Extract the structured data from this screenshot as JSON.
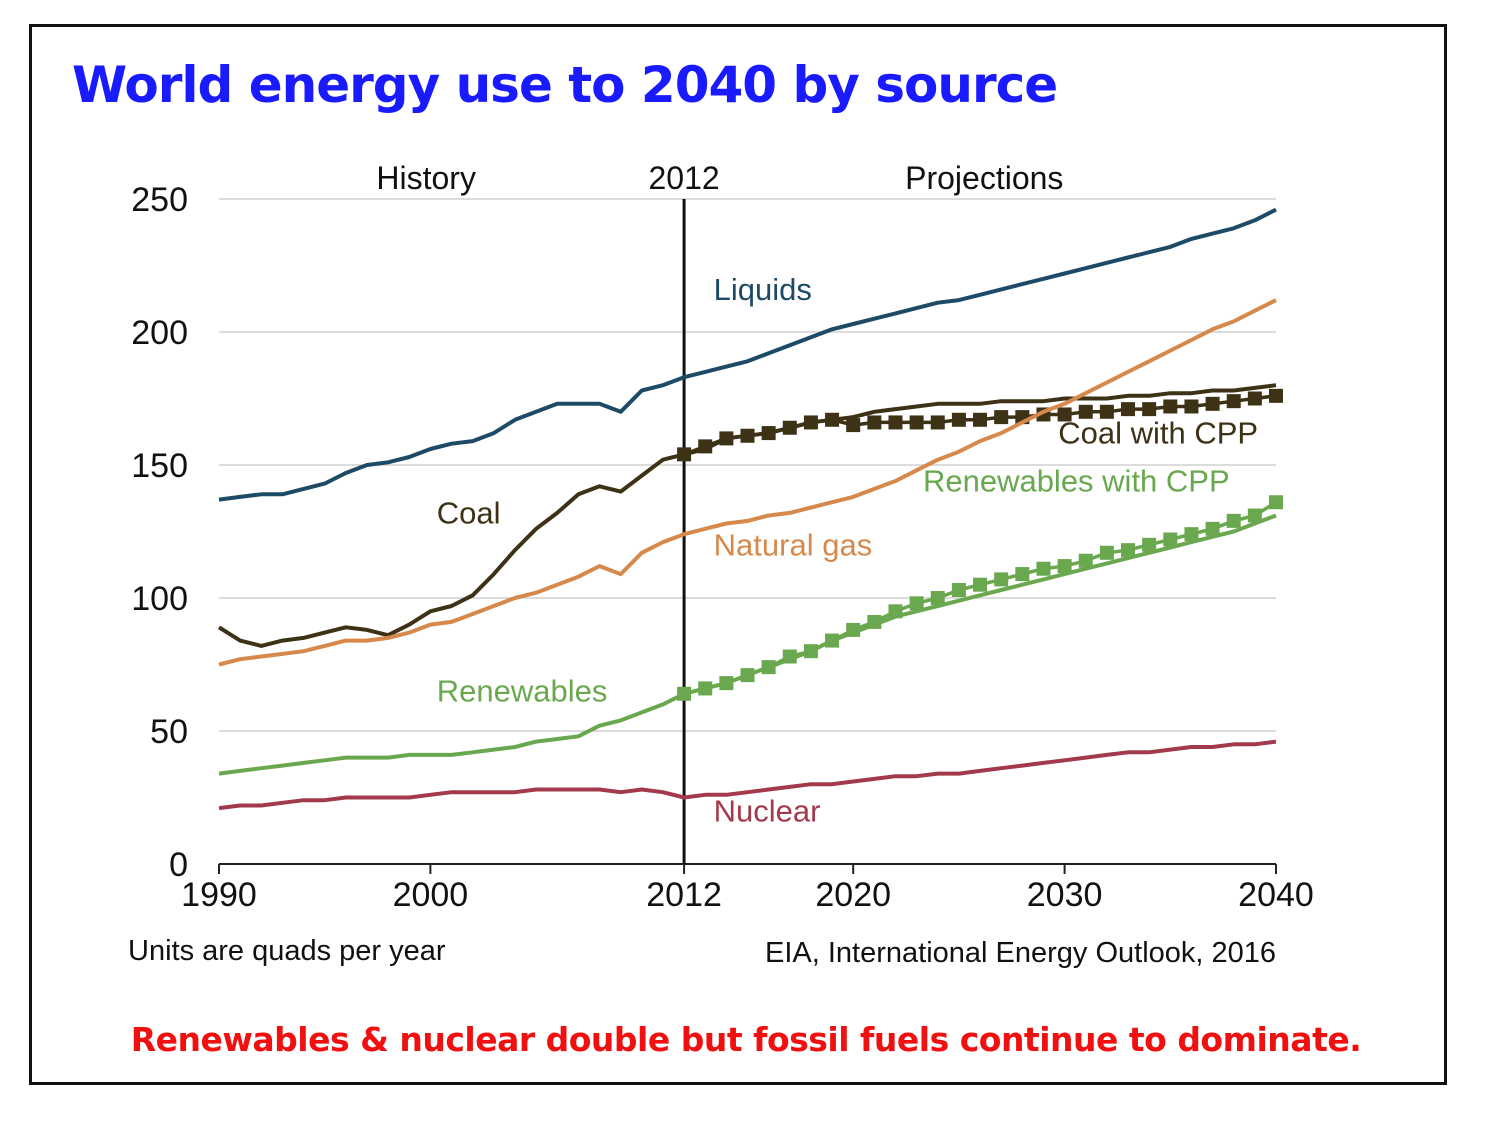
{
  "title": "World energy use to 2040 by source",
  "units_note": "Units are quads per year",
  "source_note": "EIA, International Energy Outlook, 2016",
  "caption": "Renewables & nuclear double but fossil fuels continue to dominate.",
  "colors": {
    "title": "#1a1aff",
    "caption": "#f01010",
    "liquids": "#1d4a66",
    "coal": "#3d3116",
    "natural_gas": "#d6894b",
    "renewables": "#6aa84f",
    "nuclear": "#a33a4c"
  },
  "chart_data": {
    "type": "line",
    "xlim": [
      1990,
      2040
    ],
    "ylim": [
      0,
      250
    ],
    "x_ticks": [
      "1990",
      "2000",
      "2012",
      "2020",
      "2030",
      "2040"
    ],
    "y_ticks": [
      "0",
      "50",
      "100",
      "150",
      "200",
      "250"
    ],
    "grid": true,
    "period_labels": {
      "history": "History",
      "divider": "2012",
      "projections": "Projections"
    },
    "divider_year": 2012,
    "series": [
      {
        "name": "Liquids",
        "color": "#1d4a66",
        "marker": "none",
        "x": [
          1990,
          1991,
          1992,
          1993,
          1994,
          1995,
          1996,
          1997,
          1998,
          1999,
          2000,
          2001,
          2002,
          2003,
          2004,
          2005,
          2006,
          2007,
          2008,
          2009,
          2010,
          2011,
          2012,
          2013,
          2014,
          2015,
          2016,
          2017,
          2018,
          2019,
          2020,
          2021,
          2022,
          2023,
          2024,
          2025,
          2026,
          2027,
          2028,
          2029,
          2030,
          2031,
          2032,
          2033,
          2034,
          2035,
          2036,
          2037,
          2038,
          2039,
          2040
        ],
        "y": [
          137,
          138,
          139,
          139,
          141,
          143,
          147,
          150,
          151,
          153,
          156,
          158,
          159,
          162,
          167,
          170,
          173,
          173,
          173,
          170,
          178,
          180,
          183,
          185,
          187,
          189,
          192,
          195,
          198,
          201,
          203,
          205,
          207,
          209,
          211,
          212,
          214,
          216,
          218,
          220,
          222,
          224,
          226,
          228,
          230,
          232,
          235,
          237,
          239,
          242,
          246
        ]
      },
      {
        "name": "Coal",
        "color": "#3d3116",
        "marker": "none",
        "x": [
          1990,
          1991,
          1992,
          1993,
          1994,
          1995,
          1996,
          1997,
          1998,
          1999,
          2000,
          2001,
          2002,
          2003,
          2004,
          2005,
          2006,
          2007,
          2008,
          2009,
          2010,
          2011,
          2012,
          2013,
          2014,
          2015,
          2016,
          2017,
          2018,
          2019,
          2020,
          2021,
          2022,
          2023,
          2024,
          2025,
          2026,
          2027,
          2028,
          2029,
          2030,
          2031,
          2032,
          2033,
          2034,
          2035,
          2036,
          2037,
          2038,
          2039,
          2040
        ],
        "y": [
          89,
          84,
          82,
          84,
          85,
          87,
          89,
          88,
          86,
          90,
          95,
          97,
          101,
          109,
          118,
          126,
          132,
          139,
          142,
          140,
          146,
          152,
          154,
          156,
          160,
          161,
          162,
          164,
          166,
          167,
          168,
          170,
          171,
          172,
          173,
          173,
          173,
          174,
          174,
          174,
          175,
          175,
          175,
          176,
          176,
          177,
          177,
          178,
          178,
          179,
          180
        ]
      },
      {
        "name": "Coal with CPP",
        "color": "#3d3116",
        "marker": "square",
        "x": [
          2012,
          2013,
          2014,
          2015,
          2016,
          2017,
          2018,
          2019,
          2020,
          2021,
          2022,
          2023,
          2024,
          2025,
          2026,
          2027,
          2028,
          2029,
          2030,
          2031,
          2032,
          2033,
          2034,
          2035,
          2036,
          2037,
          2038,
          2039,
          2040
        ],
        "y": [
          154,
          157,
          160,
          161,
          162,
          164,
          166,
          167,
          165,
          166,
          166,
          166,
          166,
          167,
          167,
          168,
          168,
          169,
          169,
          170,
          170,
          171,
          171,
          172,
          172,
          173,
          174,
          175,
          176
        ]
      },
      {
        "name": "Natural gas",
        "color": "#d6894b",
        "marker": "none",
        "x": [
          1990,
          1991,
          1992,
          1993,
          1994,
          1995,
          1996,
          1997,
          1998,
          1999,
          2000,
          2001,
          2002,
          2003,
          2004,
          2005,
          2006,
          2007,
          2008,
          2009,
          2010,
          2011,
          2012,
          2013,
          2014,
          2015,
          2016,
          2017,
          2018,
          2019,
          2020,
          2021,
          2022,
          2023,
          2024,
          2025,
          2026,
          2027,
          2028,
          2029,
          2030,
          2031,
          2032,
          2033,
          2034,
          2035,
          2036,
          2037,
          2038,
          2039,
          2040
        ],
        "y": [
          75,
          77,
          78,
          79,
          80,
          82,
          84,
          84,
          85,
          87,
          90,
          91,
          94,
          97,
          100,
          102,
          105,
          108,
          112,
          109,
          117,
          121,
          124,
          126,
          128,
          129,
          131,
          132,
          134,
          136,
          138,
          141,
          144,
          148,
          152,
          155,
          159,
          162,
          166,
          170,
          173,
          177,
          181,
          185,
          189,
          193,
          197,
          201,
          204,
          208,
          212
        ]
      },
      {
        "name": "Renewables",
        "color": "#6aa84f",
        "marker": "none",
        "x": [
          1990,
          1991,
          1992,
          1993,
          1994,
          1995,
          1996,
          1997,
          1998,
          1999,
          2000,
          2001,
          2002,
          2003,
          2004,
          2005,
          2006,
          2007,
          2008,
          2009,
          2010,
          2011,
          2012,
          2013,
          2014,
          2015,
          2016,
          2017,
          2018,
          2019,
          2020,
          2021,
          2022,
          2023,
          2024,
          2025,
          2026,
          2027,
          2028,
          2029,
          2030,
          2031,
          2032,
          2033,
          2034,
          2035,
          2036,
          2037,
          2038,
          2039,
          2040
        ],
        "y": [
          34,
          35,
          36,
          37,
          38,
          39,
          40,
          40,
          40,
          41,
          41,
          41,
          42,
          43,
          44,
          46,
          47,
          48,
          52,
          54,
          57,
          60,
          64,
          66,
          68,
          71,
          74,
          77,
          80,
          84,
          87,
          90,
          93,
          95,
          97,
          99,
          101,
          103,
          105,
          107,
          109,
          111,
          113,
          115,
          117,
          119,
          121,
          123,
          125,
          128,
          131
        ]
      },
      {
        "name": "Renewables with CPP",
        "color": "#6aa84f",
        "marker": "square",
        "x": [
          2012,
          2013,
          2014,
          2015,
          2016,
          2017,
          2018,
          2019,
          2020,
          2021,
          2022,
          2023,
          2024,
          2025,
          2026,
          2027,
          2028,
          2029,
          2030,
          2031,
          2032,
          2033,
          2034,
          2035,
          2036,
          2037,
          2038,
          2039,
          2040
        ],
        "y": [
          64,
          66,
          68,
          71,
          74,
          78,
          80,
          84,
          88,
          91,
          95,
          98,
          100,
          103,
          105,
          107,
          109,
          111,
          112,
          114,
          117,
          118,
          120,
          122,
          124,
          126,
          129,
          131,
          136
        ]
      },
      {
        "name": "Nuclear",
        "color": "#a33a4c",
        "marker": "none",
        "x": [
          1990,
          1991,
          1992,
          1993,
          1994,
          1995,
          1996,
          1997,
          1998,
          1999,
          2000,
          2001,
          2002,
          2003,
          2004,
          2005,
          2006,
          2007,
          2008,
          2009,
          2010,
          2011,
          2012,
          2013,
          2014,
          2015,
          2016,
          2017,
          2018,
          2019,
          2020,
          2021,
          2022,
          2023,
          2024,
          2025,
          2026,
          2027,
          2028,
          2029,
          2030,
          2031,
          2032,
          2033,
          2034,
          2035,
          2036,
          2037,
          2038,
          2039,
          2040
        ],
        "y": [
          21,
          22,
          22,
          23,
          24,
          24,
          25,
          25,
          25,
          25,
          26,
          27,
          27,
          27,
          27,
          28,
          28,
          28,
          28,
          27,
          28,
          27,
          25,
          26,
          26,
          27,
          28,
          29,
          30,
          30,
          31,
          32,
          33,
          33,
          34,
          34,
          35,
          36,
          37,
          38,
          39,
          40,
          41,
          42,
          42,
          43,
          44,
          44,
          45,
          45,
          46
        ]
      }
    ],
    "annotations": [
      {
        "key": "liquids",
        "text": "Liquids",
        "color": "#1d4a66",
        "at": [
          2013.4,
          212
        ]
      },
      {
        "key": "coal",
        "text": "Coal",
        "color": "#3d3116",
        "at": [
          2000.3,
          128
        ]
      },
      {
        "key": "coal_cpp",
        "text": "Coal with CPP",
        "color": "#3d3116",
        "at": [
          2029.7,
          158
        ]
      },
      {
        "key": "renewables_cpp",
        "text": "Renewables with CPP",
        "color": "#6aa84f",
        "at": [
          2023.3,
          140
        ]
      },
      {
        "key": "natural_gas",
        "text": "Natural gas",
        "color": "#d6894b",
        "at": [
          2013.4,
          116
        ]
      },
      {
        "key": "renewables",
        "text": "Renewables",
        "color": "#6aa84f",
        "at": [
          2000.3,
          61
        ]
      },
      {
        "key": "nuclear",
        "text": "Nuclear",
        "color": "#a33a4c",
        "at": [
          2013.4,
          16
        ]
      }
    ]
  }
}
